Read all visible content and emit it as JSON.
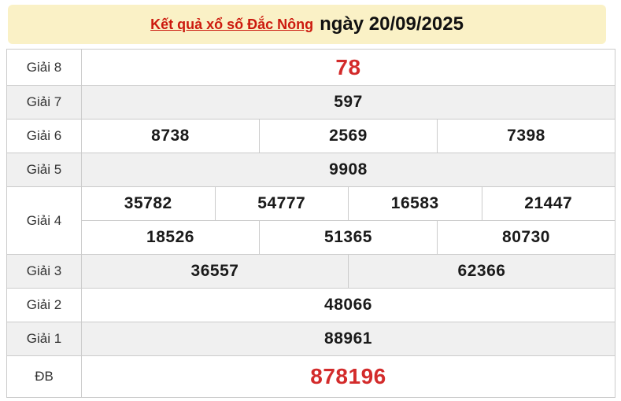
{
  "header": {
    "title_link": "Kết quả xổ số Đắc Nông",
    "date_text": "ngày 20/09/2025"
  },
  "table": {
    "rows": [
      {
        "label": "Giải 8",
        "values": [
          "78"
        ],
        "highlight": true
      },
      {
        "label": "Giải 7",
        "values": [
          "597"
        ]
      },
      {
        "label": "Giải 6",
        "values": [
          "8738",
          "2569",
          "7398"
        ]
      },
      {
        "label": "Giải 5",
        "values": [
          "9908"
        ]
      },
      {
        "label": "Giải 4",
        "values": [
          "35782",
          "54777",
          "16583",
          "21447"
        ],
        "values2": [
          "18526",
          "51365",
          "80730"
        ]
      },
      {
        "label": "Giải 3",
        "values": [
          "36557",
          "62366"
        ]
      },
      {
        "label": "Giải 2",
        "values": [
          "48066"
        ]
      },
      {
        "label": "Giải 1",
        "values": [
          "88961"
        ]
      },
      {
        "label": "ĐB",
        "values": [
          "878196"
        ],
        "highlight": true
      }
    ]
  },
  "colors": {
    "header_bg": "#FAF1C6",
    "title_red": "#CC1A0E",
    "highlight_red": "#D32B2B",
    "row_alt_bg": "#F0F0F0",
    "border": "#CBCBCB"
  }
}
